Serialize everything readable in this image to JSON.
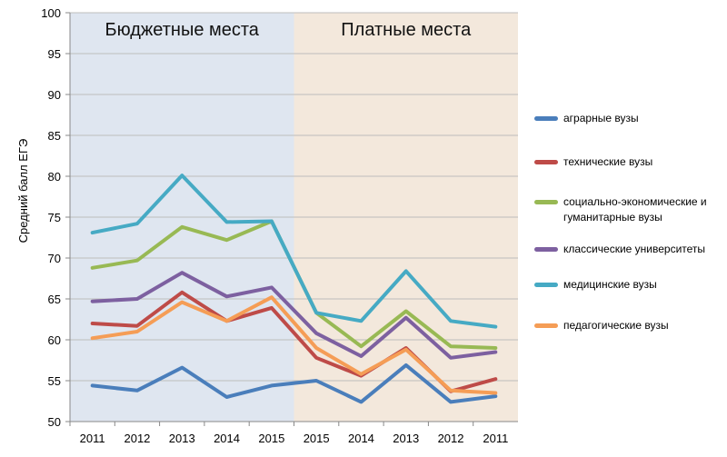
{
  "chart_data": {
    "type": "line",
    "title": "",
    "xlabel": "",
    "ylabel": "Средний балл ЕГЭ",
    "ylim": [
      50,
      100
    ],
    "yticks": [
      50,
      55,
      60,
      65,
      70,
      75,
      80,
      85,
      90,
      95,
      100
    ],
    "categories": [
      "2011",
      "2012",
      "2013",
      "2014",
      "2015",
      "2015",
      "2014",
      "2013",
      "2012",
      "2011"
    ],
    "regions": [
      {
        "label": "Бюджетные места",
        "from_index": 0,
        "to_index": 4,
        "color": "#dfe6f0"
      },
      {
        "label": "Платные места",
        "from_index": 5,
        "to_index": 9,
        "color": "#f3e8dc"
      }
    ],
    "grid": true,
    "legend_position": "right",
    "series": [
      {
        "name": "аграрные вузы",
        "color": "#4a7ebb",
        "values": [
          54.4,
          53.8,
          56.6,
          53.0,
          54.4,
          55.0,
          52.4,
          56.9,
          52.4,
          53.1
        ]
      },
      {
        "name": "технические вузы",
        "color": "#be4b48",
        "values": [
          62.0,
          61.7,
          65.8,
          62.3,
          63.9,
          57.8,
          55.6,
          59.0,
          53.7,
          55.2
        ]
      },
      {
        "name": "социально-экономические и гуманитарные вузы",
        "color": "#98b954",
        "values": [
          68.8,
          69.7,
          73.8,
          72.2,
          74.5,
          63.3,
          59.2,
          63.5,
          59.2,
          59.0
        ]
      },
      {
        "name": "классические университеты",
        "color": "#7d60a0",
        "values": [
          64.7,
          65.0,
          68.2,
          65.3,
          66.4,
          60.8,
          58.0,
          62.7,
          57.8,
          58.5
        ]
      },
      {
        "name": "медицинские вузы",
        "color": "#46aac4",
        "values": [
          73.1,
          74.2,
          80.1,
          74.4,
          74.5,
          63.3,
          62.3,
          68.4,
          62.3,
          61.6
        ]
      },
      {
        "name": "педагогические вузы",
        "color": "#f59d56",
        "values": [
          60.2,
          61.0,
          64.6,
          62.3,
          65.2,
          59.0,
          55.8,
          58.8,
          53.8,
          53.5
        ]
      }
    ]
  }
}
